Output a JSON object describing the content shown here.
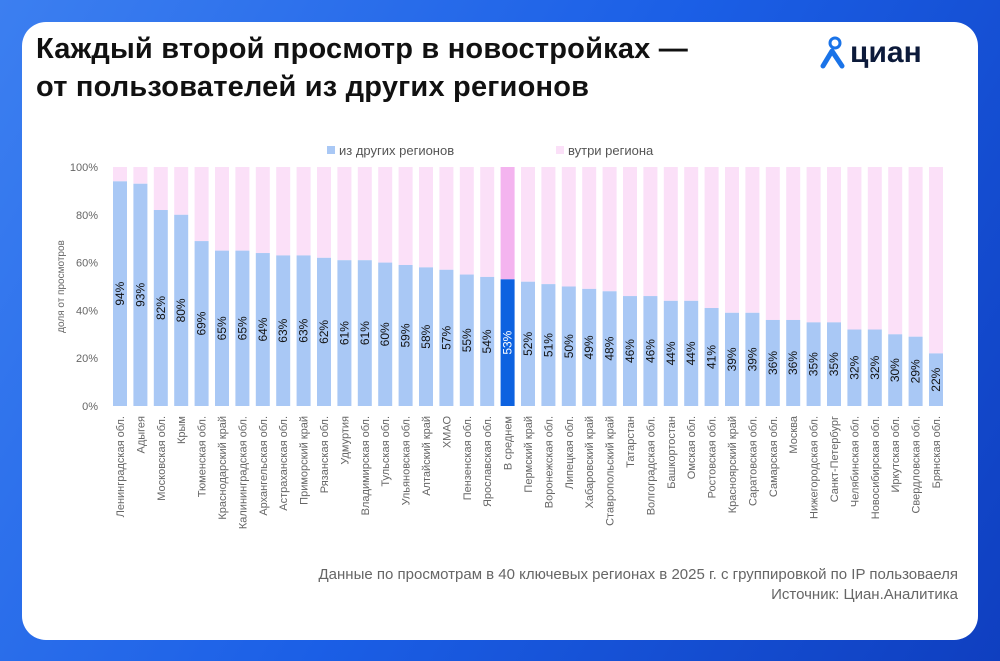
{
  "title_line1": "Каждый второй просмотр в новостройках —",
  "title_line2": "от пользователей из других регионов",
  "logo": "циан",
  "footnote": "Данные по просмотрам в 40 ключевых регионах  в 2025 г. с группировкой по IP пользоваеля",
  "source": "Источник: Циан.Аналитика",
  "colors": {
    "other": "#a9c8f5",
    "inside": "#fbe0f8",
    "avg_other": "#0d62e0",
    "avg_inside": "#f4b4ef"
  },
  "chart_data": {
    "type": "bar",
    "stacked": true,
    "ylabel": "доля от просмотров",
    "ylim": [
      0,
      100
    ],
    "yticks": [
      "0%",
      "20%",
      "40%",
      "60%",
      "80%",
      "100%"
    ],
    "legend_position": "top",
    "highlight": "В среднем",
    "categories": [
      "Ленинградская обл.",
      "Адыгея",
      "Московская обл.",
      "Крым",
      "Тюменская обл.",
      "Краснодарский край",
      "Калининградская обл.",
      "Архангельская обл.",
      "Астраханская обл.",
      "Приморский край",
      "Рязанская обл.",
      "Удмуртия",
      "Владимирская обл.",
      "Тульская обл.",
      "Ульяновская обл.",
      "Алтайский край",
      "ХМАО",
      "Пензенская обл.",
      "Ярославская обл.",
      "В среднем",
      "Пермский край",
      "Воронежская обл.",
      "Липецкая обл.",
      "Хабаровский край",
      "Ставропольский край",
      "Татарстан",
      "Волгоградская обл.",
      "Башкортостан",
      "Омская обл.",
      "Ростовская обл.",
      "Красноярский край",
      "Саратовская обл.",
      "Самарская обл.",
      "Москва",
      "Нижегородская обл.",
      "Санкт-Петербург",
      "Челябинская обл.",
      "Новосибирская обл.",
      "Иркутская обл.",
      "Свердловская обл.",
      "Брянская обл."
    ],
    "series": [
      {
        "name": "из других регионов",
        "values": [
          94,
          93,
          82,
          80,
          69,
          65,
          65,
          64,
          63,
          63,
          62,
          61,
          61,
          60,
          59,
          58,
          57,
          55,
          54,
          53,
          52,
          51,
          50,
          49,
          48,
          46,
          46,
          44,
          44,
          41,
          39,
          39,
          36,
          36,
          35,
          35,
          32,
          32,
          30,
          29,
          22
        ]
      },
      {
        "name": "вутри региона",
        "values": [
          6,
          7,
          18,
          20,
          31,
          35,
          35,
          36,
          37,
          37,
          38,
          39,
          39,
          40,
          41,
          42,
          43,
          45,
          46,
          47,
          48,
          49,
          50,
          51,
          52,
          54,
          54,
          56,
          56,
          59,
          61,
          61,
          64,
          64,
          65,
          65,
          68,
          68,
          70,
          71,
          78
        ]
      }
    ]
  }
}
